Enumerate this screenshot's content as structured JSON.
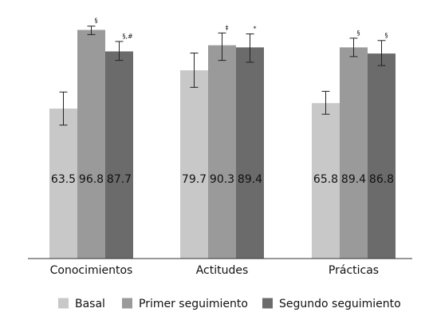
{
  "chart_data": {
    "type": "bar",
    "categories": [
      "Conocimientos",
      "Actitudes",
      "Prácticas"
    ],
    "series": [
      {
        "name": "Basal",
        "color": "#c8c8c8",
        "values": [
          63.5,
          79.7,
          65.8
        ],
        "error_low": [
          56.5,
          72.5,
          61.1
        ],
        "error_high": [
          70.5,
          87.0,
          70.8
        ],
        "markers": [
          "",
          "",
          ""
        ]
      },
      {
        "name": "Primer seguimiento",
        "color": "#9a9a9a",
        "values": [
          96.8,
          90.3,
          89.4
        ],
        "error_low": [
          94.8,
          83.9,
          85.5
        ],
        "error_high": [
          98.4,
          95.5,
          93.3
        ],
        "markers": [
          "§",
          "‡",
          "§"
        ]
      },
      {
        "name": "Segundo seguimiento",
        "color": "#6b6b6b",
        "values": [
          87.7,
          89.4,
          86.8
        ],
        "error_low": [
          83.9,
          83.1,
          81.7
        ],
        "error_high": [
          91.9,
          95.1,
          92.3
        ],
        "markers": [
          "§,#",
          "*",
          "§"
        ]
      }
    ],
    "ylim": [
      0,
      100
    ],
    "grid": false,
    "legend_position": "bottom"
  }
}
